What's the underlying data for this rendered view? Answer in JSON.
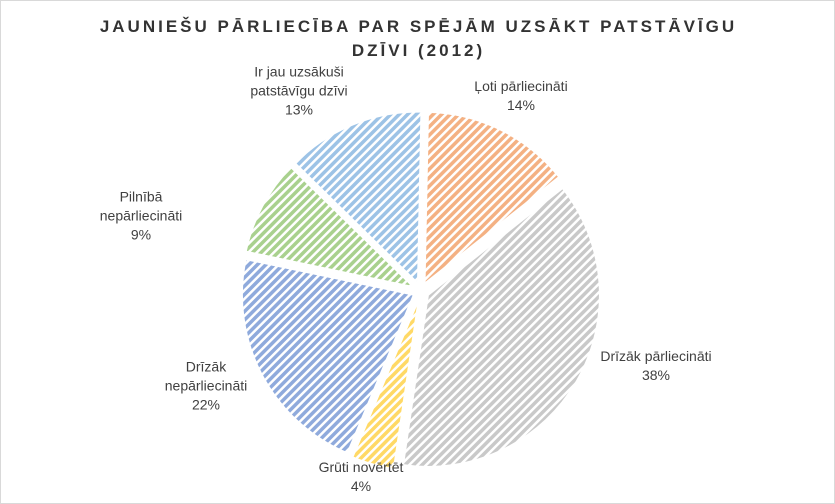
{
  "chart_data": {
    "type": "pie",
    "title": "JAUNIEŠU PĀRLIECĪBA PAR SPĒJĀM UZSĀKT PATSTĀVĪGU DZĪVI (2012)",
    "categories": [
      "Ļoti pārliecināti",
      "Drīzāk pārliecināti",
      "Grūti novērtēt",
      "Drīzāk nepārliecināti",
      "Pilnībā nepārliecināti",
      "Ir jau uzsākuši patstāvīgu dzīvi"
    ],
    "values": [
      14,
      38,
      4,
      22,
      9,
      13
    ],
    "value_labels": [
      "14%",
      "38%",
      "4%",
      "22%",
      "9%",
      "13%"
    ],
    "colors": [
      "#f4b183",
      "#c9c9c9",
      "#ffd966",
      "#8faadc",
      "#a9d18e",
      "#9dc3e6"
    ]
  }
}
